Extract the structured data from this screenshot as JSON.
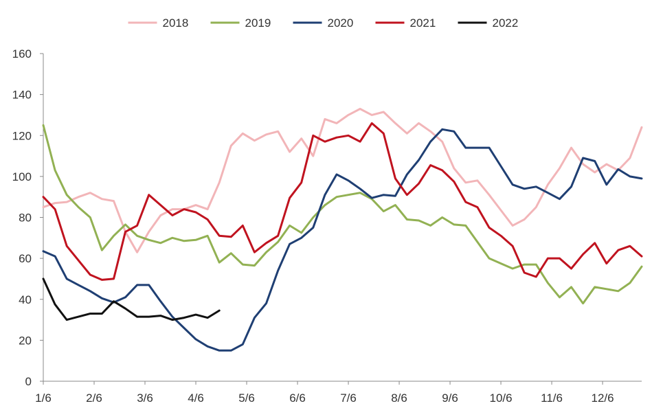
{
  "chart_data": {
    "type": "line",
    "title": "",
    "xlabel": "",
    "ylabel": "",
    "ylim": [
      0,
      160
    ],
    "yticks": [
      0,
      20,
      40,
      60,
      80,
      100,
      120,
      140,
      160
    ],
    "xticks": [
      "1/6",
      "2/6",
      "3/6",
      "4/6",
      "5/6",
      "6/6",
      "7/6",
      "8/6",
      "9/6",
      "10/6",
      "11/6",
      "12/6"
    ],
    "x_unit": "week of year",
    "legend_position": "top",
    "grid": false,
    "series": [
      {
        "name": "2018",
        "color": "#F2B5B8",
        "values": [
          85,
          87,
          87.5,
          90,
          92,
          89,
          88,
          73,
          63,
          73,
          81,
          84,
          84,
          86,
          84,
          97,
          115,
          121,
          117.5,
          120.5,
          122,
          112,
          118.5,
          110,
          128,
          126,
          130,
          133,
          130,
          131.5,
          126,
          121,
          126,
          122,
          117,
          104,
          97,
          98,
          91,
          83.5,
          76,
          79,
          85,
          96,
          104,
          114,
          106,
          102,
          106,
          103,
          109,
          124
        ]
      },
      {
        "name": "2019",
        "color": "#92B153",
        "values": [
          125,
          103,
          91,
          85,
          80,
          64,
          71,
          76.5,
          71,
          69,
          67.5,
          70,
          68.5,
          69,
          71,
          58,
          62.5,
          57,
          56.5,
          63,
          68,
          76,
          72.5,
          80,
          86,
          90,
          91,
          92,
          89,
          83,
          86,
          79,
          78.5,
          76,
          80,
          76.5,
          76,
          68,
          60,
          57.5,
          55,
          57,
          57,
          48,
          41,
          46,
          38,
          46,
          45,
          44,
          48,
          56
        ]
      },
      {
        "name": "2020",
        "color": "#1F3F73",
        "values": [
          63.5,
          61,
          50,
          47,
          44,
          40.5,
          38.5,
          41,
          47,
          47,
          39,
          31.5,
          26,
          20.5,
          17,
          15,
          15,
          18,
          31,
          38,
          54,
          67,
          70,
          75,
          91,
          101,
          98,
          94,
          89.5,
          91,
          90.5,
          101,
          108,
          117,
          123,
          122,
          114,
          114,
          114,
          105,
          96,
          94,
          95,
          92,
          89,
          95,
          109,
          107.5,
          96,
          103.5,
          100,
          99
        ]
      },
      {
        "name": "2021",
        "color": "#C0131F",
        "values": [
          90,
          84,
          66,
          59,
          52,
          49.5,
          50,
          73,
          76,
          91,
          86,
          81,
          84,
          82.5,
          79,
          71,
          70.5,
          76,
          63,
          67.5,
          71,
          89.5,
          97,
          120,
          117,
          119,
          120,
          117,
          126,
          121,
          99,
          91,
          96.5,
          105.5,
          103,
          97.5,
          87.5,
          85,
          75,
          71,
          66,
          53,
          51,
          60,
          60,
          55,
          62,
          67.5,
          57.5,
          64,
          66,
          61
        ]
      },
      {
        "name": "2022",
        "color": "#111111",
        "values": [
          50,
          37.5,
          30,
          31.5,
          33,
          33,
          39,
          35.5,
          31.5,
          31.5,
          32,
          30,
          31,
          32.5,
          31,
          34.5
        ]
      }
    ]
  }
}
